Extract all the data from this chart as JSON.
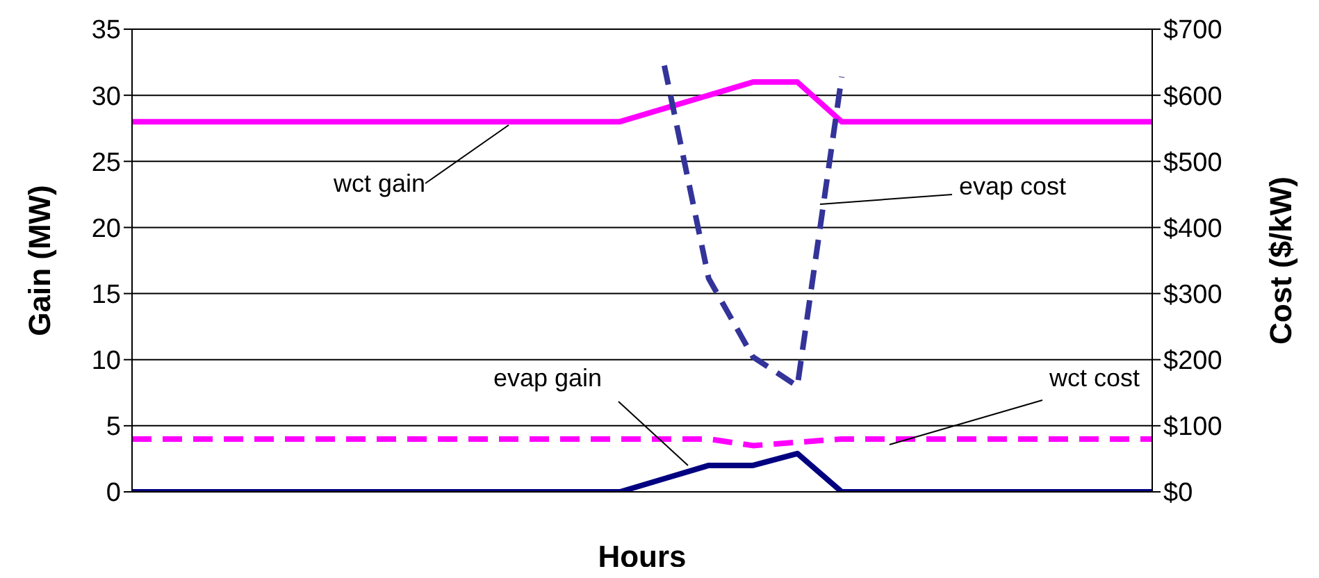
{
  "chart_data": {
    "type": "line",
    "xlabel": "Hours",
    "ylabel": "Gain (MW)",
    "y2label": "Cost ($/kW)",
    "categories": [
      null,
      null,
      null,
      null,
      null,
      null,
      null,
      null,
      null,
      null,
      null,
      null,
      null,
      null,
      null,
      null,
      null,
      null,
      null,
      null,
      null,
      null,
      null,
      null
    ],
    "series": [
      {
        "name": "wct gain",
        "color": "#ff00ff",
        "line_style": "solid",
        "values": [
          28,
          28,
          28,
          28,
          28,
          28,
          28,
          28,
          28,
          28,
          28,
          28,
          29,
          30,
          31,
          31,
          28,
          28,
          28,
          28,
          28,
          28,
          28,
          28
        ]
      },
      {
        "name": "evap gain",
        "color": "#000080",
        "line_style": "solid",
        "values": [
          0,
          0,
          0,
          0,
          0,
          0,
          0,
          0,
          0,
          0,
          0,
          0,
          1,
          2,
          2,
          2.9,
          0,
          0,
          0,
          0,
          0,
          0,
          0,
          0
        ]
      },
      {
        "name": "wct cost",
        "color": "#ff00ff",
        "line_style": "dashed",
        "axis": "y2",
        "values": [
          80,
          80,
          80,
          80,
          80,
          80,
          80,
          80,
          80,
          80,
          80,
          80,
          80,
          80,
          70,
          75,
          80,
          80,
          80,
          80,
          80,
          80,
          80,
          80
        ]
      },
      {
        "name": "evap cost",
        "color": "#333399",
        "line_style": "dashed",
        "axis": "y2",
        "values": [
          null,
          null,
          null,
          null,
          null,
          null,
          null,
          null,
          null,
          null,
          null,
          null,
          645,
          323,
          204,
          160,
          628,
          null,
          null,
          null,
          null,
          null,
          null,
          null
        ]
      }
    ],
    "ylim": [
      0,
      35
    ],
    "yticks": [
      0,
      5,
      10,
      15,
      20,
      25,
      30,
      35
    ],
    "y2lim": [
      0,
      700
    ],
    "y2ticks": [
      {
        "value": 0,
        "label": "$0"
      },
      {
        "value": 100,
        "label": "$100"
      },
      {
        "value": 200,
        "label": "$200"
      },
      {
        "value": 300,
        "label": "$300"
      },
      {
        "value": 400,
        "label": "$400"
      },
      {
        "value": 500,
        "label": "$500"
      },
      {
        "value": 600,
        "label": "$600"
      },
      {
        "value": 700,
        "label": "$700"
      }
    ],
    "grid": "y",
    "legend": false,
    "marker": "none"
  }
}
